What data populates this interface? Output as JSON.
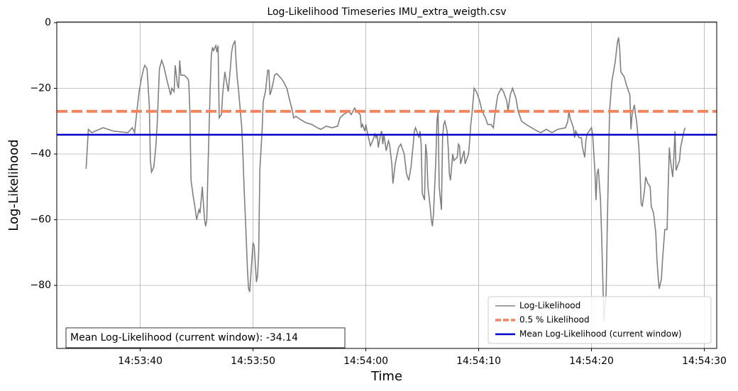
{
  "chart_data": {
    "type": "line",
    "title": "Log-Likelihood Timeseries IMU_extra_weigth.csv",
    "x_label": "Time",
    "y_label": "Log-Likelihood",
    "xlim": [
      "14:53:32.6",
      "14:54:31.1"
    ],
    "ylim": [
      -99.2,
      0.2
    ],
    "xticks": [
      "14:53:40",
      "14:53:50",
      "14:54:00",
      "14:54:10",
      "14:54:20",
      "14:54:30"
    ],
    "yticks": [
      0,
      {
        "value": -20,
        "label": "−20"
      },
      {
        "value": -40,
        "label": "−40"
      },
      {
        "value": -60,
        "label": "−60"
      },
      {
        "value": -80,
        "label": "−80"
      }
    ],
    "grid": true,
    "legend": "lower right",
    "series": [
      {
        "name": "Log-Likelihood",
        "color": "#808080",
        "x": [
          "14:53:35.2",
          "14:53:35.4",
          "14:53:35.7",
          "14:53:36.7",
          "14:53:37.6",
          "14:53:38.9",
          "14:53:39.3",
          "14:53:39.5",
          "14:53:39.7",
          "14:53:39.9",
          "14:53:40.1",
          "14:53:40.3",
          "14:53:40.4",
          "14:53:40.6",
          "14:53:40.8",
          "14:53:40.9",
          "14:53:41.0",
          "14:53:41.2",
          "14:53:41.4",
          "14:53:41.5",
          "14:53:41.7",
          "14:53:41.9",
          "14:53:42.1",
          "14:53:42.4",
          "14:53:42.7",
          "14:53:42.8",
          "14:53:43.0",
          "14:53:43.1",
          "14:53:43.3",
          "14:53:43.4",
          "14:53:43.5",
          "14:53:43.6",
          "14:53:43.9",
          "14:53:44.2",
          "14:53:44.3",
          "14:53:44.4",
          "14:53:44.5",
          "14:53:44.7",
          "14:53:44.8",
          "14:53:45.0",
          "14:53:45.2",
          "14:53:45.3",
          "14:53:45.5",
          "14:53:45.7",
          "14:53:45.8",
          "14:53:45.9",
          "14:53:46.0",
          "14:53:46.2",
          "14:53:46.3",
          "14:53:46.4",
          "14:53:46.5",
          "14:53:46.7",
          "14:53:46.8",
          "14:53:46.9",
          "14:53:47.0",
          "14:53:47.2",
          "14:53:47.3",
          "14:53:47.5",
          "14:53:47.7",
          "14:53:47.8",
          "14:53:48.0",
          "14:53:48.1",
          "14:53:48.2",
          "14:53:48.4",
          "14:53:48.5",
          "14:53:48.6",
          "14:53:48.7",
          "14:53:48.9",
          "14:53:49.0",
          "14:53:49.1",
          "14:53:49.2",
          "14:53:49.4",
          "14:53:49.5",
          "14:53:49.6",
          "14:53:49.7",
          "14:53:49.9",
          "14:53:50.0",
          "14:53:50.1",
          "14:53:50.3",
          "14:53:50.4",
          "14:53:50.5",
          "14:53:50.6",
          "14:53:50.8",
          "14:53:50.9",
          "14:53:51.1",
          "14:53:51.3",
          "14:53:51.4",
          "14:53:51.5",
          "14:53:51.6",
          "14:53:51.8",
          "14:53:51.9",
          "14:53:52.1",
          "14:53:52.5",
          "14:53:52.7",
          "14:53:53.0",
          "14:53:53.2",
          "14:53:53.5",
          "14:53:53.6",
          "14:53:53.8",
          "14:53:54.2",
          "14:53:54.7",
          "14:53:55.2",
          "14:53:55.7",
          "14:53:56.0",
          "14:53:56.5",
          "14:53:57.0",
          "14:53:57.5",
          "14:53:57.7",
          "14:53:58.0",
          "14:53:58.5",
          "14:53:58.7",
          "14:53:59.0",
          "14:53:59.2",
          "14:53:59.5",
          "14:53:59.6",
          "14:53:59.7",
          "14:53:59.9",
          "14:54:00.0",
          "14:54:00.1",
          "14:54:00.4",
          "14:54:00.6",
          "14:54:00.8",
          "14:54:00.9",
          "14:54:01.0",
          "14:54:01.1",
          "14:54:01.3",
          "14:54:01.4",
          "14:54:01.5",
          "14:54:01.6",
          "14:54:01.8",
          "14:54:02.0",
          "14:54:02.1",
          "14:54:02.3",
          "14:54:02.4",
          "14:54:02.6",
          "14:54:02.9",
          "14:54:03.1",
          "14:54:03.4",
          "14:54:03.6",
          "14:54:03.8",
          "14:54:04.0",
          "14:54:04.2",
          "14:54:04.3",
          "14:54:04.4",
          "14:54:04.7",
          "14:54:04.8",
          "14:54:04.9",
          "14:54:05.0",
          "14:54:05.2",
          "14:54:05.3",
          "14:54:05.4",
          "14:54:05.5",
          "14:54:05.7",
          "14:54:05.8",
          "14:54:05.9",
          "14:54:06.0",
          "14:54:06.2",
          "14:54:06.3",
          "14:54:06.4",
          "14:54:06.5",
          "14:54:06.7",
          "14:54:06.8",
          "14:54:06.9",
          "14:54:07.0",
          "14:54:07.2",
          "14:54:07.3",
          "14:54:07.4",
          "14:54:07.5",
          "14:54:07.7",
          "14:54:07.8",
          "14:54:08.1",
          "14:54:08.2",
          "14:54:08.3",
          "14:54:08.4",
          "14:54:08.7",
          "14:54:08.8",
          "14:54:09.1",
          "14:54:09.2",
          "14:54:09.3",
          "14:54:09.4",
          "14:54:09.6",
          "14:54:09.8",
          "14:54:10.1",
          "14:54:10.3",
          "14:54:10.6",
          "14:54:10.8",
          "14:54:11.1",
          "14:54:11.3",
          "14:54:11.4",
          "14:54:11.6",
          "14:54:11.7",
          "14:54:12.0",
          "14:54:12.2",
          "14:54:12.5",
          "14:54:12.6",
          "14:54:12.8",
          "14:54:13.0",
          "14:54:13.3",
          "14:54:13.5",
          "14:54:13.8",
          "14:54:14.2",
          "14:54:14.7",
          "14:54:15.2",
          "14:54:15.5",
          "14:54:16.0",
          "14:54:16.5",
          "14:54:17.0",
          "14:54:17.7",
          "14:54:17.9",
          "14:54:18.0",
          "14:54:18.1",
          "14:54:18.4",
          "14:54:18.5",
          "14:54:18.6",
          "14:54:18.9",
          "14:54:19.1",
          "14:54:19.2",
          "14:54:19.4",
          "14:54:19.5",
          "14:54:19.6",
          "14:54:20.0",
          "14:54:20.1",
          "14:54:20.3",
          "14:54:20.4",
          "14:54:20.5",
          "14:54:20.6",
          "14:54:20.8",
          "14:54:20.9",
          "14:54:21.0",
          "14:54:21.1",
          "14:54:21.3",
          "14:54:21.4",
          "14:54:21.5",
          "14:54:21.6",
          "14:54:21.8",
          "14:54:22.0",
          "14:54:22.1",
          "14:54:22.3",
          "14:54:22.4",
          "14:54:22.5",
          "14:54:22.6",
          "14:54:22.9",
          "14:54:23.1",
          "14:54:23.4",
          "14:54:23.5",
          "14:54:23.6",
          "14:54:23.8",
          "14:54:23.9",
          "14:54:24.0",
          "14:54:24.2",
          "14:54:24.3",
          "14:54:24.4",
          "14:54:24.5",
          "14:54:24.7",
          "14:54:24.8",
          "14:54:25.0",
          "14:54:25.2",
          "14:54:25.3",
          "14:54:25.5",
          "14:54:25.7",
          "14:54:25.8",
          "14:54:25.9",
          "14:54:26.0",
          "14:54:26.2",
          "14:54:26.3",
          "14:54:26.5",
          "14:54:26.7",
          "14:54:26.8",
          "14:54:26.9",
          "14:54:27.0",
          "14:54:27.2",
          "14:54:27.3",
          "14:54:27.4",
          "14:54:27.5",
          "14:54:27.8",
          "14:54:27.9",
          "14:54:28.2",
          "14:54:28.3"
        ],
        "values": [
          -44.5,
          -32.5,
          -33.5,
          -32,
          -33,
          -33.5,
          -32,
          -33.5,
          -27,
          -21,
          -17,
          -14,
          -13,
          -14,
          -25,
          -42,
          -45.5,
          -44,
          -37,
          -31,
          -14,
          -11.5,
          -13.5,
          -18,
          -22,
          -20,
          -21,
          -13,
          -19,
          -20,
          -11.5,
          -16,
          -16,
          -17,
          -18,
          -27,
          -48,
          -53,
          -55,
          -60,
          -57,
          -58,
          -50,
          -60,
          -62,
          -60,
          -45,
          -20,
          -10,
          -7.5,
          -8.5,
          -7,
          -9,
          -7,
          -29,
          -28,
          -22,
          -15,
          -19,
          -21,
          -13.5,
          -9,
          -7,
          -5.5,
          -12,
          -17,
          -20,
          -28,
          -32,
          -40,
          -50,
          -66,
          -75,
          -81,
          -82,
          -72,
          -67,
          -68,
          -79,
          -77,
          -70,
          -45,
          -33,
          -24,
          -21,
          -14.5,
          -14.5,
          -22,
          -21,
          -18,
          -16,
          -15.5,
          -17,
          -18,
          -20,
          -23,
          -27,
          -29,
          -28.5,
          -29.5,
          -30.5,
          -31,
          -32,
          -32.5,
          -31.5,
          -32,
          -31.5,
          -29,
          -28,
          -27,
          -28,
          -26,
          -27,
          -28,
          -32,
          -31,
          -33,
          -31,
          -33,
          -37.5,
          -36,
          -34,
          -35,
          -34,
          -38,
          -34,
          -33,
          -37,
          -34,
          -39,
          -36,
          -37,
          -43,
          -49,
          -43,
          -38,
          -37,
          -40,
          -46,
          -48,
          -44,
          -37,
          -33,
          -32,
          -35,
          -33,
          -37,
          -52,
          -54,
          -37,
          -40,
          -50,
          -56,
          -60,
          -62,
          -58,
          -42,
          -30,
          -27,
          -50,
          -57,
          -35,
          -31,
          -30,
          -33,
          -38,
          -46,
          -48,
          -40,
          -42,
          -41,
          -37,
          -37.5,
          -43,
          -39,
          -43,
          -40,
          -36,
          -31,
          -28,
          -20,
          -21,
          -24,
          -27,
          -29,
          -31,
          -31,
          -32,
          -29,
          -24,
          -22,
          -20,
          -21,
          -24,
          -27,
          -22,
          -20,
          -23,
          -27,
          -30,
          -31,
          -32,
          -33,
          -33.5,
          -32.5,
          -33.5,
          -32.5,
          -32,
          -30,
          -27,
          -29,
          -32,
          -35,
          -33,
          -35,
          -35,
          -38,
          -41,
          -36,
          -34,
          -32,
          -34,
          -45,
          -54,
          -46,
          -44.5,
          -54,
          -65,
          -78,
          -91,
          -82,
          -62,
          -45,
          -27,
          -18,
          -14,
          -12,
          -6,
          -4.5,
          -8,
          -15,
          -16.5,
          -19,
          -22,
          -32.5,
          -28,
          -25,
          -28,
          -30,
          -38,
          -45,
          -55,
          -56,
          -51,
          -47,
          -49,
          -50,
          -56,
          -58,
          -64,
          -72,
          -77,
          -81,
          -78,
          -72,
          -63,
          -63,
          -50,
          -38,
          -42,
          -47,
          -41,
          -33,
          -45,
          -42,
          -38,
          -33,
          -32
        ]
      }
    ],
    "hlines": [
      {
        "name": "0.5 % Likelihood",
        "value": -27,
        "color": "#f4845f",
        "dashed": true
      },
      {
        "name": "Mean Log-Likelihood (current window)",
        "value": -34.14,
        "color": "#0000cd",
        "dashed": false
      }
    ],
    "annotation": "Mean Log-Likelihood (current window): -34.14"
  }
}
